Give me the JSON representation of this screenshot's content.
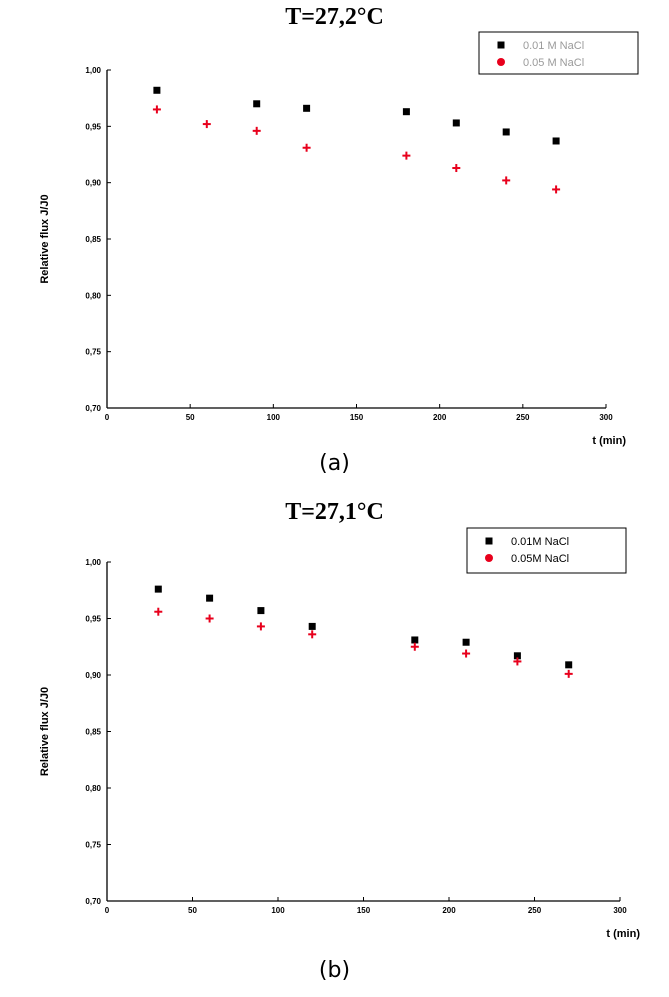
{
  "chart_data": [
    {
      "type": "scatter",
      "title": "T=27,2°C",
      "caption": "(a)",
      "xlabel": "t (min)",
      "ylabel": "Relative flux J/J0",
      "xlim": [
        0,
        300
      ],
      "ylim": [
        0.7,
        1.0
      ],
      "xticks": [
        "0",
        "50",
        "100",
        "150",
        "200",
        "250",
        "300"
      ],
      "yticks": [
        "1,00",
        "0,95",
        "0,90",
        "0,85",
        "0,80",
        "0,75",
        "0,70"
      ],
      "grid": false,
      "legend_position": "top-right",
      "series": [
        {
          "name": "0.01 M NaCl",
          "marker": "square",
          "color": "#000000",
          "x": [
            30,
            90,
            120,
            180,
            210,
            240,
            270
          ],
          "y": [
            0.982,
            0.97,
            0.966,
            0.963,
            0.953,
            0.945,
            0.937
          ]
        },
        {
          "name": "0.05 M NaCl",
          "marker": "plus",
          "color": "#e8001c",
          "x": [
            30,
            60,
            90,
            120,
            180,
            210,
            240,
            270
          ],
          "y": [
            0.965,
            0.952,
            0.946,
            0.931,
            0.924,
            0.913,
            0.902,
            0.894
          ]
        }
      ]
    },
    {
      "type": "scatter",
      "title": "T=27,1°C",
      "caption": "(b)",
      "xlabel": "t (min)",
      "ylabel": "Relative flux J/J0",
      "xlim": [
        0,
        300
      ],
      "ylim": [
        0.7,
        1.0
      ],
      "xticks": [
        "0",
        "50",
        "100",
        "150",
        "200",
        "250",
        "300"
      ],
      "yticks": [
        "1,00",
        "0,95",
        "0,90",
        "0,85",
        "0,80",
        "0,75",
        "0,70"
      ],
      "grid": false,
      "legend_position": "top-right",
      "series": [
        {
          "name": "0.01M NaCl",
          "marker": "square",
          "color": "#000000",
          "x": [
            30,
            60,
            90,
            120,
            180,
            210,
            240,
            270
          ],
          "y": [
            0.976,
            0.968,
            0.957,
            0.943,
            0.931,
            0.929,
            0.917,
            0.909
          ]
        },
        {
          "name": "0.05M NaCl",
          "marker": "plus",
          "color": "#e8001c",
          "x": [
            30,
            60,
            90,
            120,
            180,
            210,
            240,
            270
          ],
          "y": [
            0.956,
            0.95,
            0.943,
            0.936,
            0.925,
            0.919,
            0.912,
            0.901
          ]
        }
      ]
    }
  ]
}
